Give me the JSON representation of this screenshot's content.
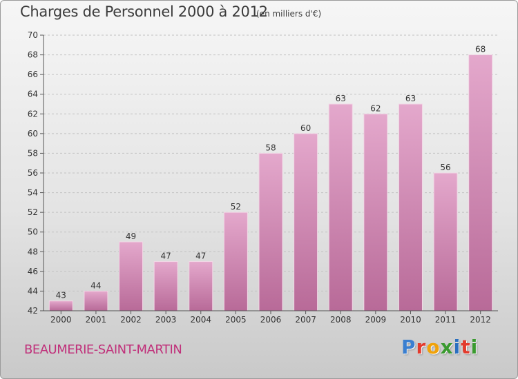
{
  "header": {
    "title": "Charges de Personnel 2000 à 2012",
    "subtitle": "(en milliers d'€)"
  },
  "footer": {
    "city": "BEAUMERIE-SAINT-MARTIN",
    "logo_letters": [
      "P",
      "r",
      "o",
      "x",
      "i",
      "t",
      "i"
    ],
    "logo_colors": [
      "#3a7fd0",
      "#e23b2d",
      "#f0a20a",
      "#3a9a2f",
      "#2a6fbf",
      "#e23b2d",
      "#3a9a2f"
    ]
  },
  "colors": {
    "bar_top": "#e4a8cc",
    "bar_bottom": "#b86a98",
    "city": "#c0307a"
  },
  "chart_data": {
    "type": "bar",
    "categories": [
      "2000",
      "2001",
      "2002",
      "2003",
      "2004",
      "2005",
      "2006",
      "2007",
      "2008",
      "2009",
      "2010",
      "2011",
      "2012"
    ],
    "values": [
      43,
      44,
      49,
      47,
      47,
      52,
      58,
      60,
      63,
      62,
      63,
      56,
      68
    ],
    "ylim": [
      42,
      70
    ],
    "yticks": [
      42,
      44,
      46,
      48,
      50,
      52,
      54,
      56,
      58,
      60,
      62,
      64,
      66,
      68,
      70
    ],
    "grid": true,
    "legend": "none"
  }
}
